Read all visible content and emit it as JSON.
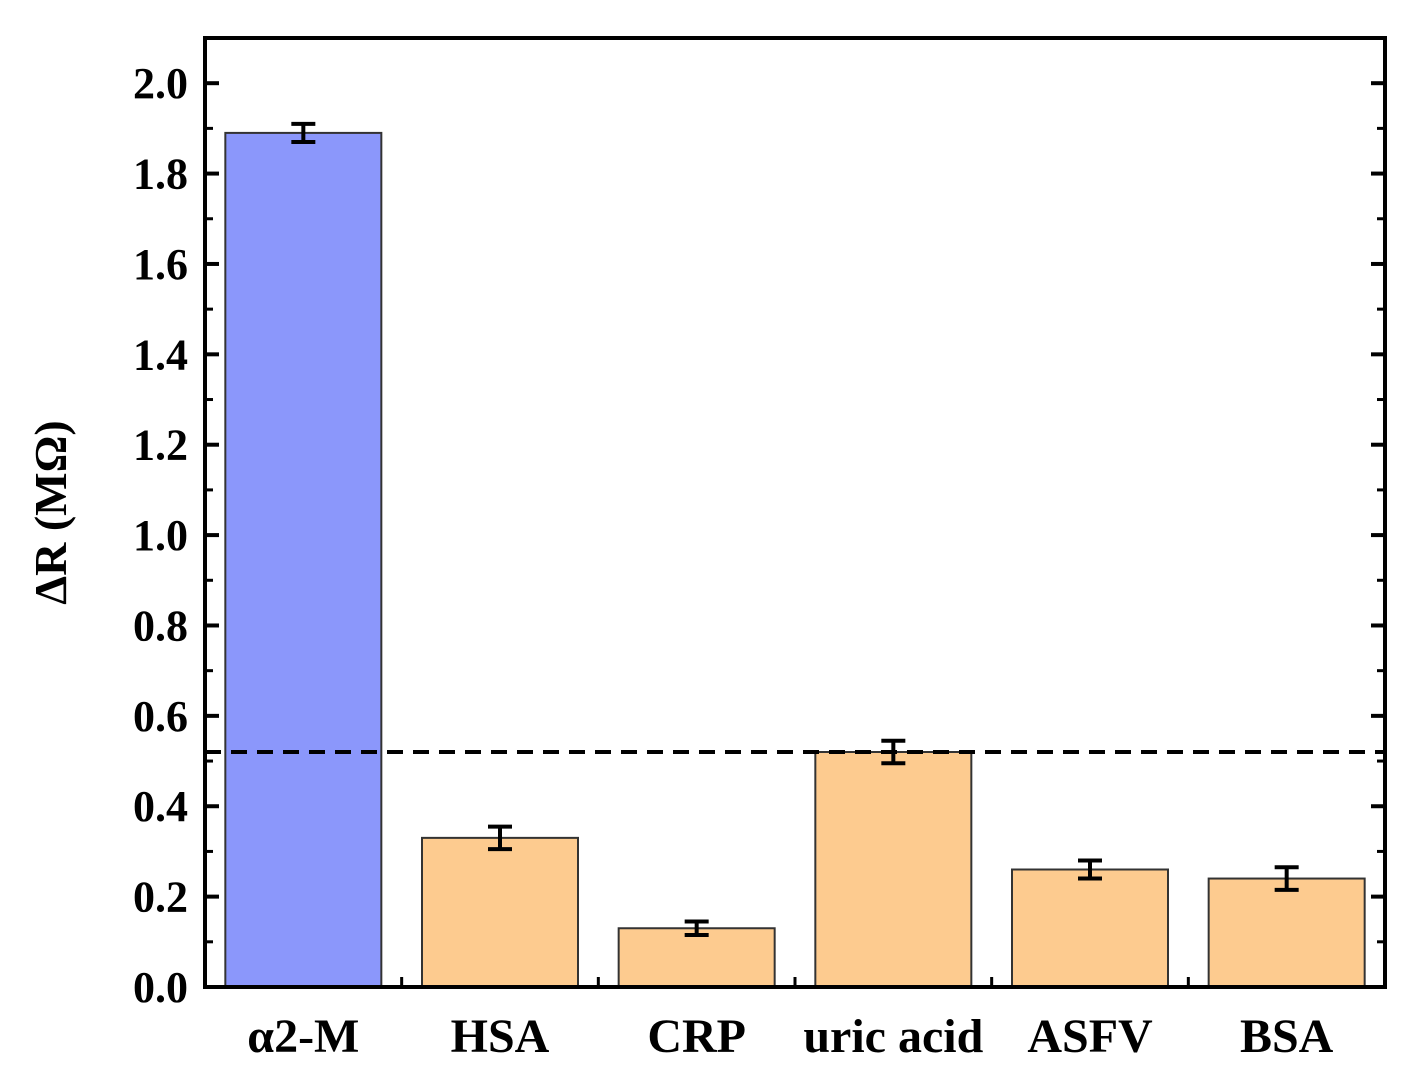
{
  "chart_data": {
    "type": "bar",
    "title": "",
    "xlabel": "",
    "ylabel": "ΔR (MΩ)",
    "ylim": [
      0.0,
      2.1
    ],
    "yticks": [
      "0.0",
      "0.2",
      "0.4",
      "0.6",
      "0.8",
      "1.0",
      "1.2",
      "1.4",
      "1.6",
      "1.8",
      "2.0"
    ],
    "categories": [
      "α2-M",
      "HSA",
      "CRP",
      "uric acid",
      "ASFV",
      "BSA"
    ],
    "values": [
      1.89,
      0.33,
      0.13,
      0.52,
      0.26,
      0.24
    ],
    "errors": [
      0.02,
      0.025,
      0.015,
      0.025,
      0.02,
      0.025
    ],
    "bar_colors": [
      "#8b97fb",
      "#fdcb8f",
      "#fdcb8f",
      "#fdcb8f",
      "#fdcb8f",
      "#fdcb8f"
    ],
    "threshold": 0.52,
    "grid": false
  }
}
